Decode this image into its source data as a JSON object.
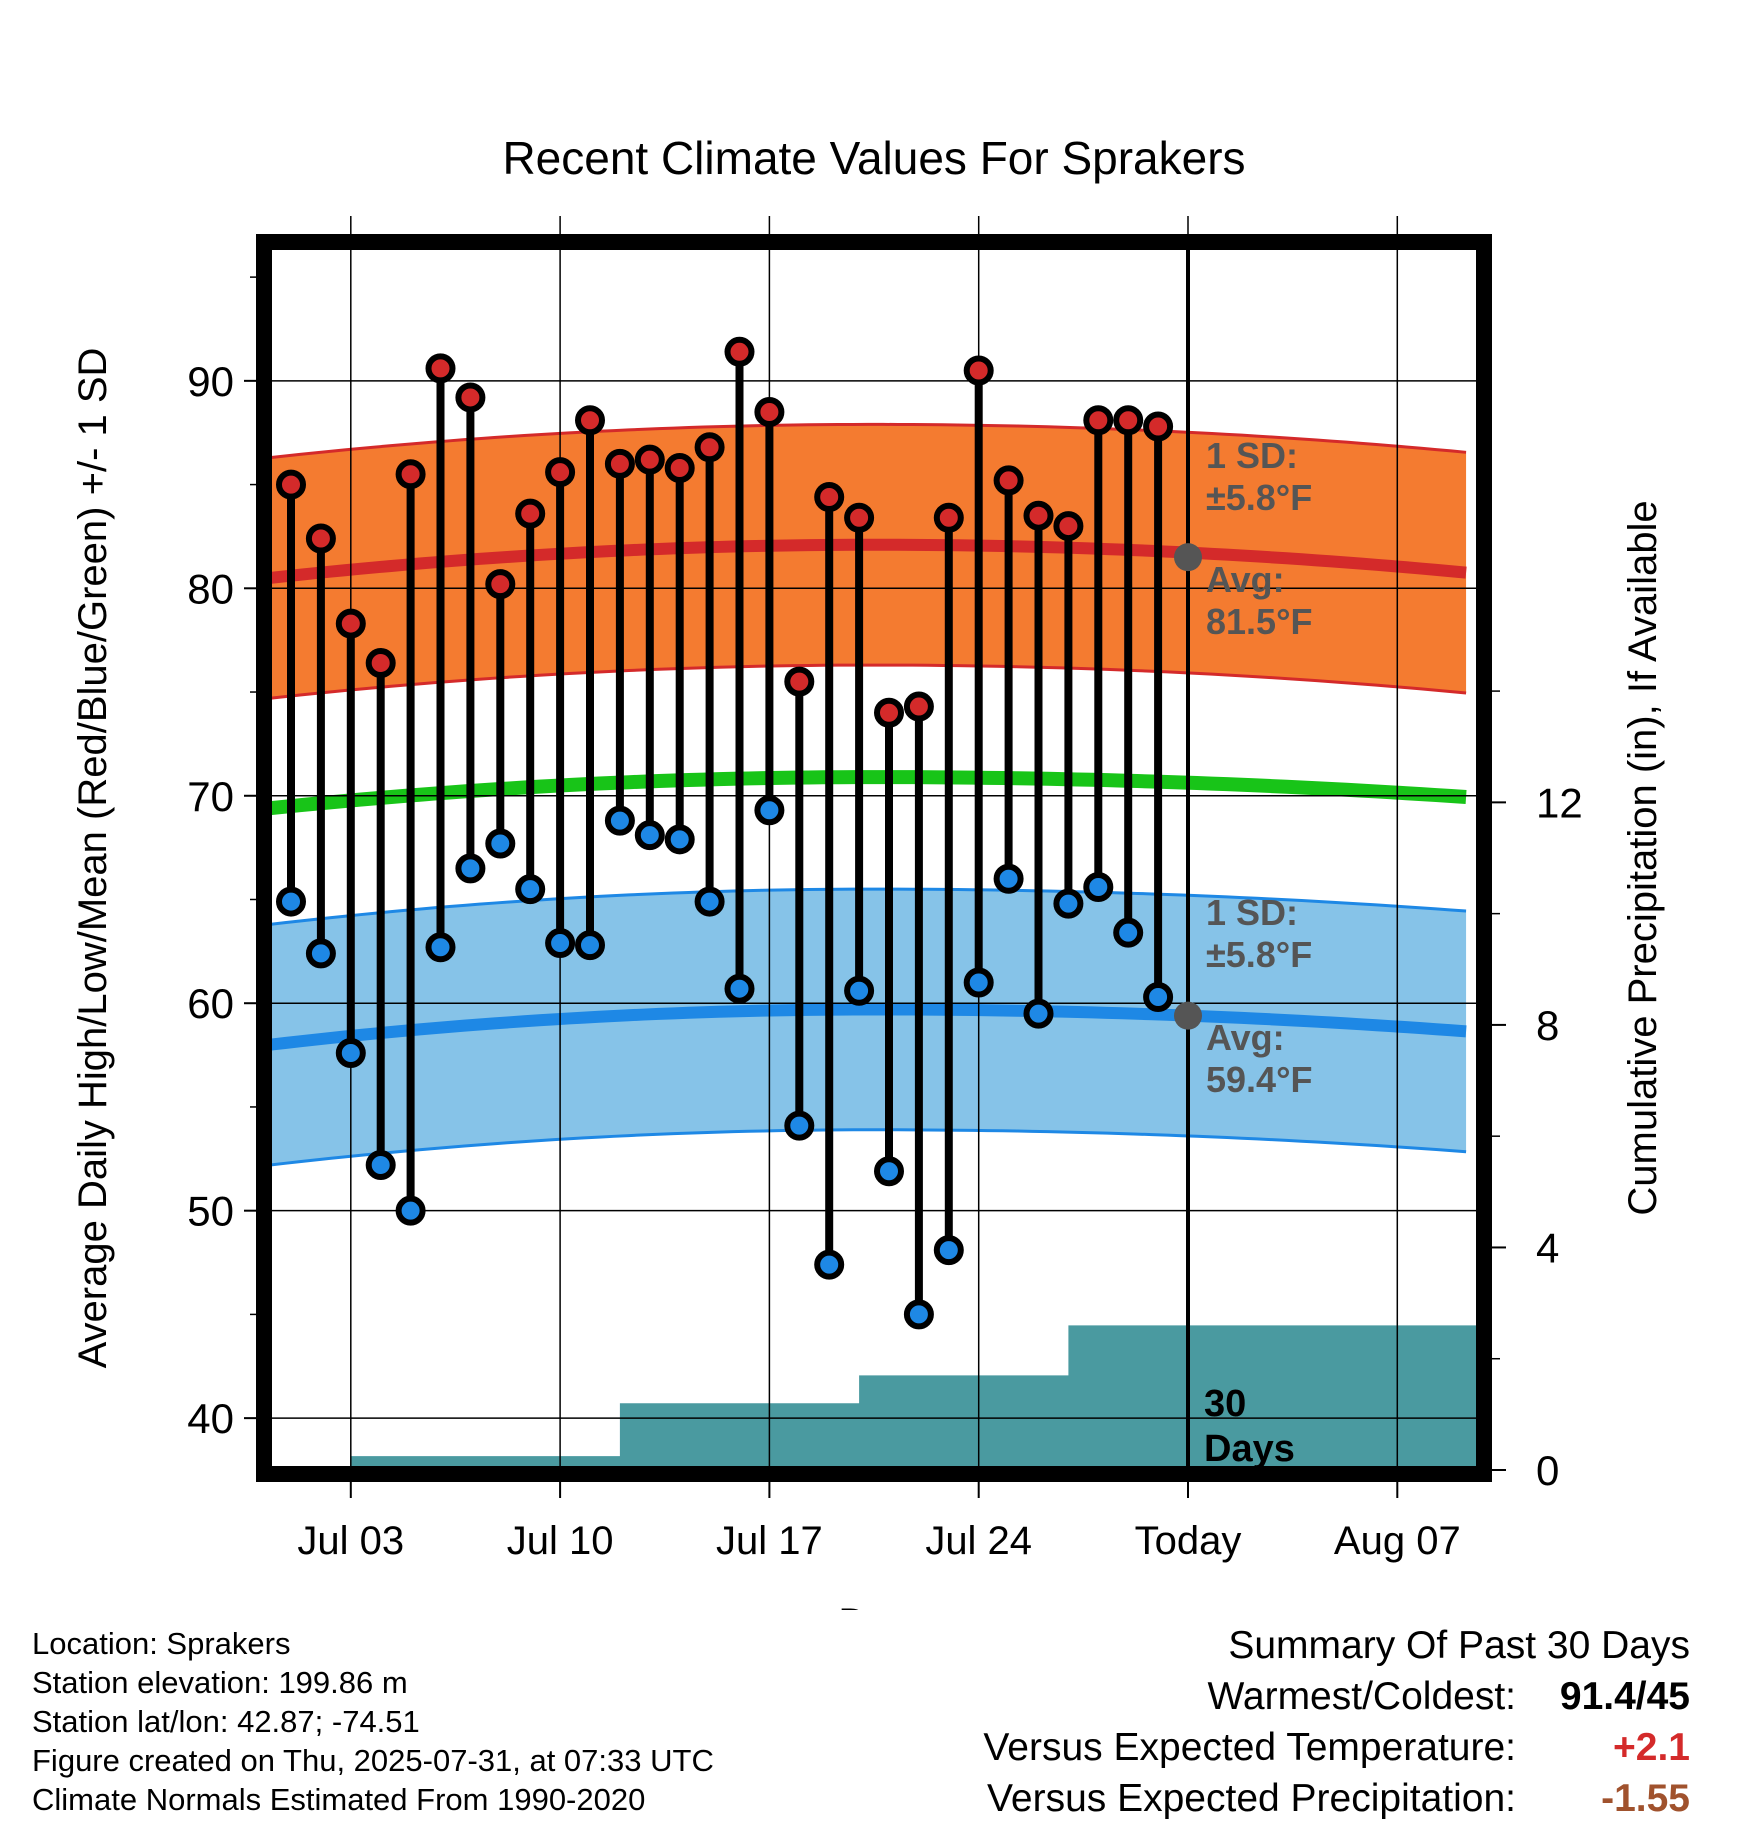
{
  "chart_data": {
    "type": "line",
    "title": "Recent Climate Values For Sprakers",
    "xlabel": "Day",
    "ylabel": "Average Daily High/Low/Mean (Red/Blue/Green) +/- 1 SD",
    "y2label": "Cumulative Precipitation (in), If Available",
    "x_tick_labels": [
      "Jul 03",
      "Jul 10",
      "Jul 17",
      "Jul 24",
      "Today",
      "Aug 07"
    ],
    "y_ticks": [
      40,
      50,
      60,
      70,
      80,
      90
    ],
    "y2_ticks": [
      0,
      4,
      8,
      12
    ],
    "ylim": [
      37.5,
      96.5
    ],
    "y2lim": [
      0,
      22
    ],
    "daily": {
      "day": [
        "Jul 01",
        "Jul 02",
        "Jul 03",
        "Jul 04",
        "Jul 05",
        "Jul 06",
        "Jul 07",
        "Jul 08",
        "Jul 09",
        "Jul 10",
        "Jul 11",
        "Jul 12",
        "Jul 13",
        "Jul 14",
        "Jul 15",
        "Jul 16",
        "Jul 17",
        "Jul 18",
        "Jul 19",
        "Jul 20",
        "Jul 21",
        "Jul 22",
        "Jul 23",
        "Jul 24",
        "Jul 25",
        "Jul 26",
        "Jul 27",
        "Jul 28",
        "Jul 29",
        "Jul 30"
      ],
      "high": [
        85.0,
        82.4,
        78.3,
        76.4,
        85.5,
        90.6,
        89.2,
        80.2,
        83.6,
        85.6,
        88.1,
        86.0,
        86.2,
        85.8,
        86.8,
        91.4,
        88.5,
        75.5,
        84.4,
        83.4,
        74.0,
        74.3,
        83.4,
        90.5,
        85.2,
        83.5,
        83.0,
        88.1,
        88.1,
        87.8
      ],
      "low": [
        64.9,
        62.4,
        57.6,
        52.2,
        50.0,
        62.7,
        66.5,
        67.7,
        65.5,
        62.9,
        62.8,
        68.8,
        68.1,
        67.9,
        64.9,
        60.7,
        69.3,
        54.1,
        47.4,
        60.6,
        51.9,
        45.0,
        48.1,
        61.0,
        66.0,
        59.5,
        64.8,
        65.6,
        63.4,
        60.3
      ]
    },
    "normals": {
      "high_start": 80.5,
      "high_peak": 82.1,
      "high_end": 80.7,
      "low_start": 58.0,
      "low_peak": 59.7,
      "low_end": 58.6,
      "mean_start": 69.4,
      "mean_peak": 70.9,
      "mean_end": 69.9,
      "sd": 5.8
    },
    "precip_cumulative": [
      {
        "day": "Jul 01",
        "in": 0.0
      },
      {
        "day": "Jul 03",
        "in": 0.25
      },
      {
        "day": "Jul 11",
        "in": 0.25
      },
      {
        "day": "Jul 12",
        "in": 1.2
      },
      {
        "day": "Jul 19",
        "in": 1.2
      },
      {
        "day": "Jul 20",
        "in": 1.7
      },
      {
        "day": "Jul 26",
        "in": 1.7
      },
      {
        "day": "Jul 27",
        "in": 2.6
      },
      {
        "day": "Aug 09",
        "in": 2.6
      }
    ],
    "annotations": {
      "high_sd_label": "1 SD:",
      "high_sd_value": "±5.8°F",
      "high_avg_label": "Avg:",
      "high_avg_value": "81.5°F",
      "low_sd_label": "1 SD:",
      "low_sd_value": "±5.8°F",
      "low_avg_label": "Avg:",
      "low_avg_value": "59.4°F",
      "precip_label_1": "30",
      "precip_label_2": "Days"
    },
    "today_high_avg": 81.5,
    "today_low_avg": 59.4
  },
  "colors": {
    "high_band": "#f47b30",
    "high_line": "#d42a2a",
    "low_band": "#86c3e8",
    "low_line": "#1e88e5",
    "mean_line": "#18c418",
    "precip": "#4a9aa0",
    "point_high": "#d42a2a",
    "point_low": "#1e88e5"
  },
  "footer": {
    "location": "Location: Sprakers",
    "elevation": "Station elevation: 199.86 m",
    "latlon": "Station lat/lon: 42.87; -74.51",
    "created": "Figure created on Thu, 2025-07-31, at 07:33 UTC",
    "normals": "Climate Normals Estimated From 1990-2020"
  },
  "summary": {
    "title": "Summary Of Past 30 Days",
    "warmest_label": "Warmest/Coldest:",
    "warmest_value": "91.4/45",
    "temp_label": "Versus Expected Temperature:",
    "temp_value": "+2.1",
    "precip_label": "Versus Expected Precipitation:",
    "precip_value": "-1.55"
  }
}
